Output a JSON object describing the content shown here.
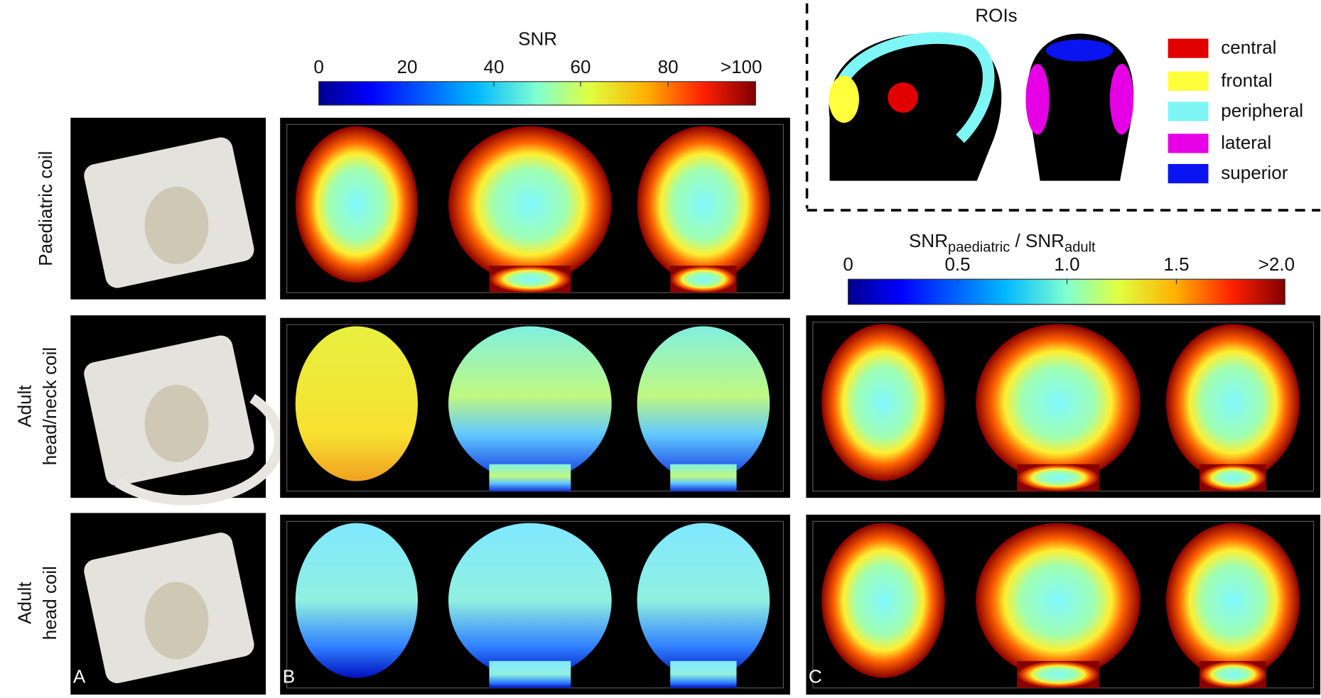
{
  "row_labels": [
    [
      "Paediatric coil"
    ],
    [
      "Adult",
      "head/neck coil"
    ],
    [
      "Adult",
      "head coil"
    ]
  ],
  "panel_letters": [
    "A",
    "B",
    "C"
  ],
  "snr_colorbar": {
    "title": "SNR",
    "ticks": [
      "0",
      "20",
      "40",
      "60",
      "80",
      ">100"
    ]
  },
  "ratio_colorbar": {
    "title_parts": [
      "SNR",
      "paediatric",
      " / SNR",
      "adult"
    ],
    "ticks": [
      "0",
      "0.5",
      "1.0",
      "1.5",
      ">2.0"
    ]
  },
  "rois": {
    "title": "ROIs",
    "legend": [
      {
        "label": "central",
        "color": "#e00000"
      },
      {
        "label": "frontal",
        "color": "#ffff3c"
      },
      {
        "label": "peripheral",
        "color": "#7ff6f6"
      },
      {
        "label": "lateral",
        "color": "#e600e6"
      },
      {
        "label": "superior",
        "color": "#0a14f0"
      }
    ]
  }
}
